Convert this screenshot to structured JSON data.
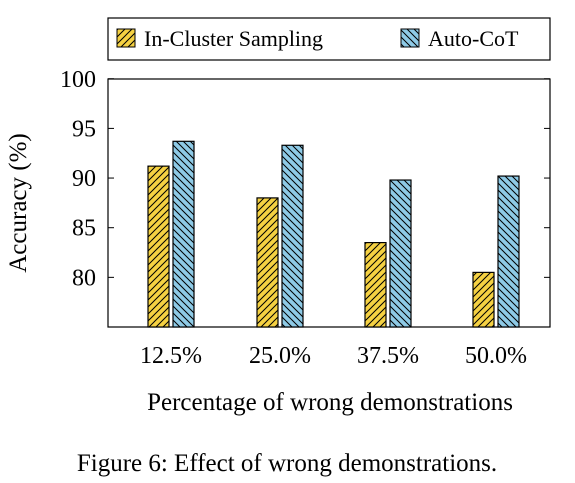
{
  "chart_data": {
    "type": "bar",
    "categories": [
      "12.5%",
      "25.0%",
      "37.5%",
      "50.0%"
    ],
    "series": [
      {
        "name": "In-Cluster Sampling",
        "values": [
          91.2,
          88.0,
          83.5,
          80.5
        ],
        "color": "#f5d142",
        "hatch": "diagonal-up"
      },
      {
        "name": "Auto-CoT",
        "values": [
          93.7,
          93.3,
          89.8,
          90.2
        ],
        "color": "#8ecae6",
        "hatch": "diagonal-down"
      }
    ],
    "xlabel": "Percentage of wrong demonstrations",
    "ylabel": "Accuracy (%)",
    "ylim": [
      75,
      100
    ],
    "yticks": [
      "80",
      "85",
      "90",
      "95",
      "100"
    ],
    "legend_position": "top",
    "grid": false
  },
  "caption": "Figure 6:  Effect of wrong demonstrations."
}
